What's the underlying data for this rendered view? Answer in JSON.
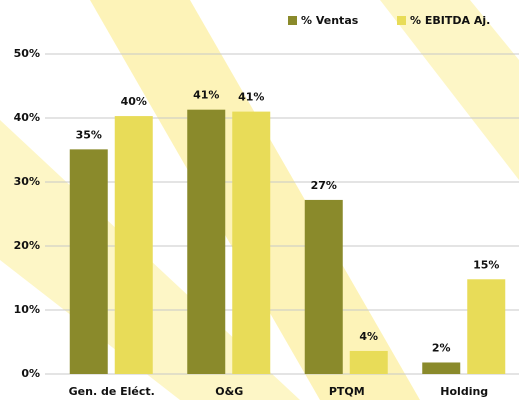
{
  "chart_data": {
    "type": "bar",
    "categories": [
      "Gen. de Eléct.",
      "O&G",
      "PTQM",
      "Holding"
    ],
    "series": [
      {
        "name": "% Ventas",
        "color": "#8a8a2b",
        "values": [
          35.1,
          41.3,
          27.2,
          1.8
        ],
        "value_labels": [
          "35%",
          "41%",
          "27%",
          "2%"
        ]
      },
      {
        "name": "% EBITDA Aj.",
        "color": "#e8dc58",
        "values": [
          40.3,
          41.0,
          3.6,
          14.8
        ],
        "value_labels": [
          "40%",
          "41%",
          "4%",
          "15%"
        ]
      }
    ],
    "ylim": [
      0,
      50
    ],
    "yticks": [
      {
        "value": 0,
        "label": "0%"
      },
      {
        "value": 10,
        "label": "10%"
      },
      {
        "value": 20,
        "label": "20%"
      },
      {
        "value": 30,
        "label": "30%"
      },
      {
        "value": 40,
        "label": "40%"
      },
      {
        "value": 50,
        "label": "50%"
      }
    ],
    "grid": true,
    "legend": "top"
  }
}
